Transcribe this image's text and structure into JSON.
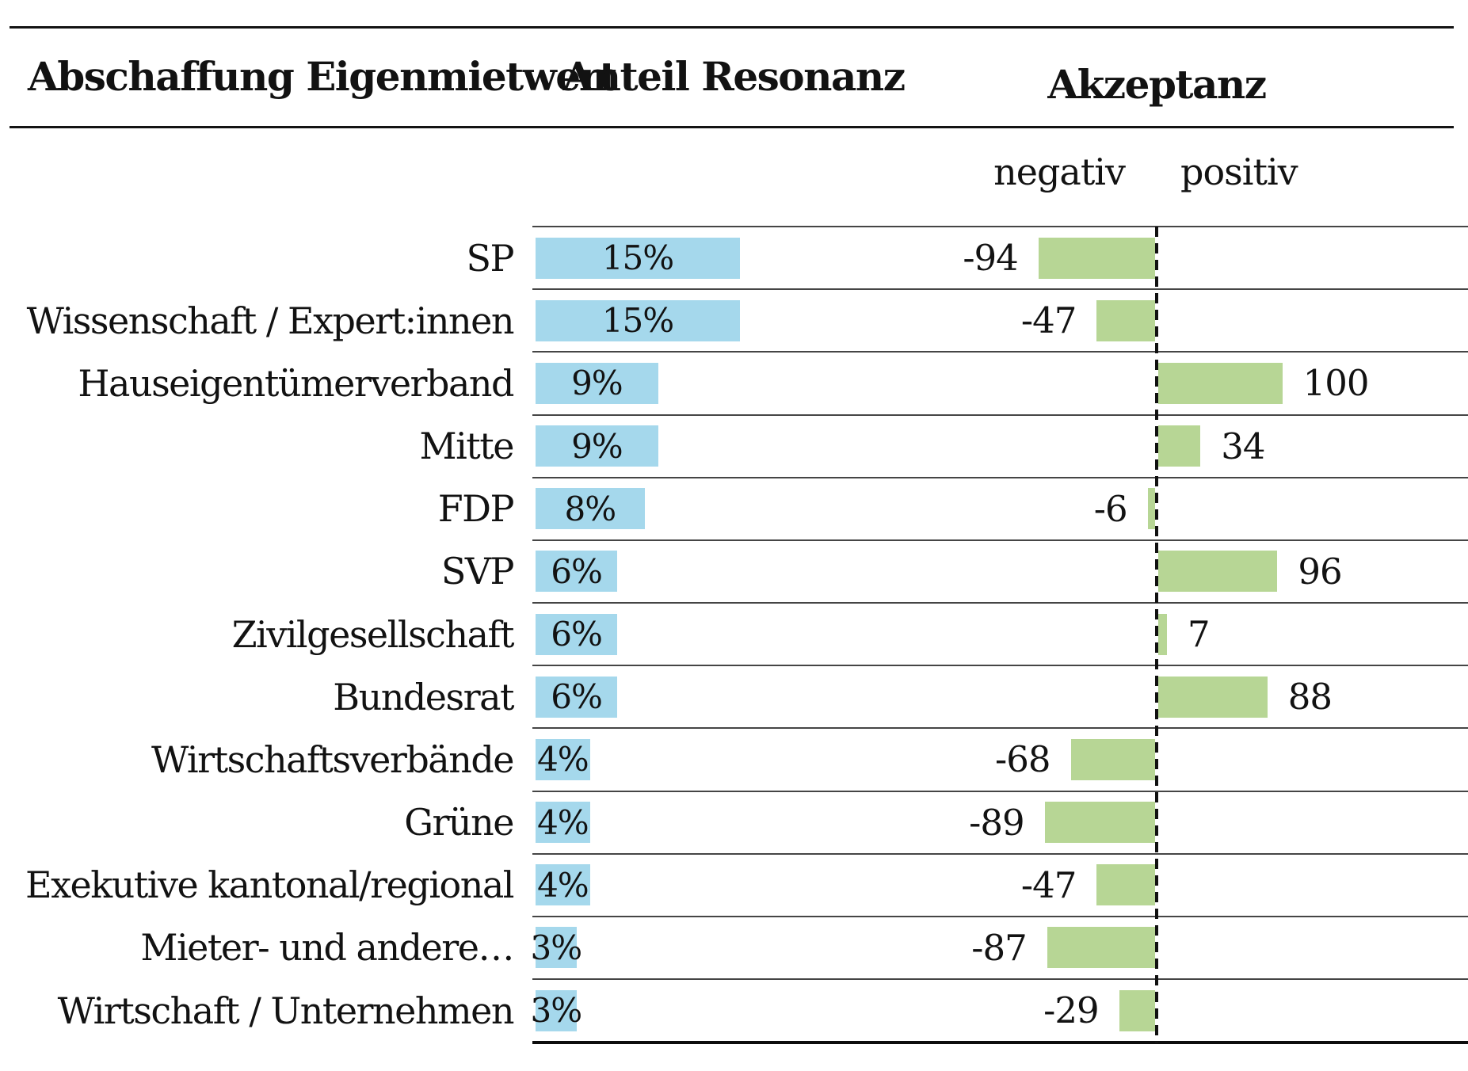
{
  "header": {
    "title": "Abschaffung Eigenmietwert",
    "col_resonance": "Anteil Resonanz",
    "col_acceptance": "Akzeptanz",
    "sub_negative": "negativ",
    "sub_positive": "positiv"
  },
  "colors": {
    "resonance_bar": "#a5d8ec",
    "acceptance_bar": "#b7d695",
    "text": "#121212",
    "header_rule": "#141414",
    "row_separator": "#454545",
    "zero_line": "#111111"
  },
  "chart_data": {
    "type": "bar",
    "orientation": "horizontal",
    "title": "Abschaffung Eigenmietwert",
    "categories": [
      "SP",
      "Wissenschaft / Expert:innen",
      "Hauseigentümerverband",
      "Mitte",
      "FDP",
      "SVP",
      "Zivilgesellschaft",
      "Bundesrat",
      "Wirtschaftsverbände",
      "Grüne",
      "Exekutive kantonal/regional",
      "Mieter- und andere…",
      "Wirtschaft / Unternehmen"
    ],
    "series": [
      {
        "name": "Anteil Resonanz",
        "unit": "%",
        "values": [
          15,
          15,
          9,
          9,
          8,
          6,
          6,
          6,
          4,
          4,
          4,
          3,
          3
        ]
      },
      {
        "name": "Akzeptanz",
        "unit": "",
        "values": [
          -94,
          -47,
          100,
          34,
          -6,
          96,
          7,
          88,
          -68,
          -89,
          -47,
          -87,
          -29
        ],
        "axis_min": -100,
        "axis_max": 100,
        "negative_label": "negativ",
        "positive_label": "positiv",
        "zero_line_style": "dashed"
      }
    ],
    "value_labels": "shown",
    "legend_position": "none",
    "grid": "row-separators"
  }
}
